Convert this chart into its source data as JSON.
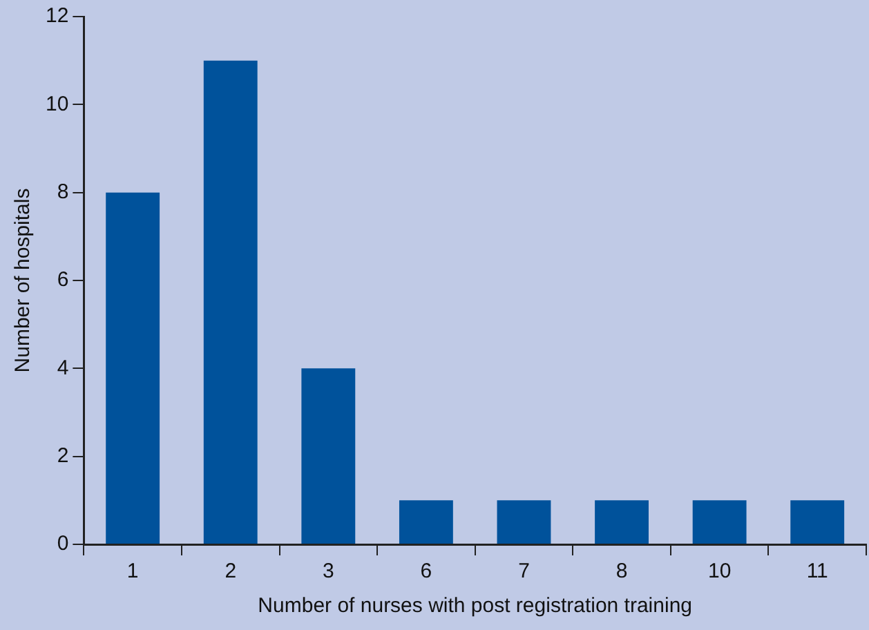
{
  "chart_data": {
    "type": "bar",
    "xlabel": "Number of nurses with post registration training",
    "ylabel": "Number of hospitals",
    "categories": [
      "1",
      "2",
      "3",
      "6",
      "7",
      "8",
      "10",
      "11"
    ],
    "values": [
      8,
      11,
      4,
      1,
      1,
      1,
      1,
      1
    ],
    "color": "#00529b",
    "ylim": [
      0,
      12
    ],
    "yticks": [
      0,
      2,
      4,
      6,
      8,
      10,
      12
    ],
    "grid": false,
    "legend": false
  }
}
